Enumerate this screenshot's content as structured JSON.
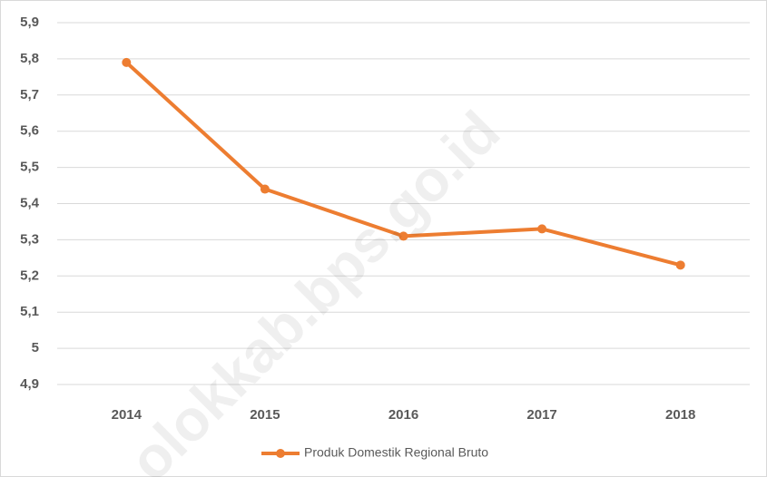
{
  "chart_data": {
    "type": "line",
    "categories": [
      "2014",
      "2015",
      "2016",
      "2017",
      "2018"
    ],
    "series": [
      {
        "name": "Produk Domestik Regional Bruto",
        "color": "#ed7d31",
        "values": [
          5.79,
          5.44,
          5.31,
          5.33,
          5.23
        ]
      }
    ],
    "ylim": [
      4.9,
      5.9
    ],
    "yticks": [
      {
        "value": 4.9,
        "label": "4,9"
      },
      5,
      {
        "value": 5.1,
        "label": "5,1"
      },
      {
        "value": 5.2,
        "label": "5,2"
      },
      {
        "value": 5.3,
        "label": "5,3"
      },
      {
        "value": 5.4,
        "label": "5,4"
      },
      {
        "value": 5.5,
        "label": "5,5"
      },
      {
        "value": 5.6,
        "label": "5,6"
      },
      {
        "value": 5.7,
        "label": "5,7"
      },
      {
        "value": 5.8,
        "label": "5,8"
      },
      {
        "value": 5.9,
        "label": "5,9"
      }
    ],
    "grid": true,
    "legend": "bottom",
    "watermark": "olokkab.bps.go.id"
  }
}
